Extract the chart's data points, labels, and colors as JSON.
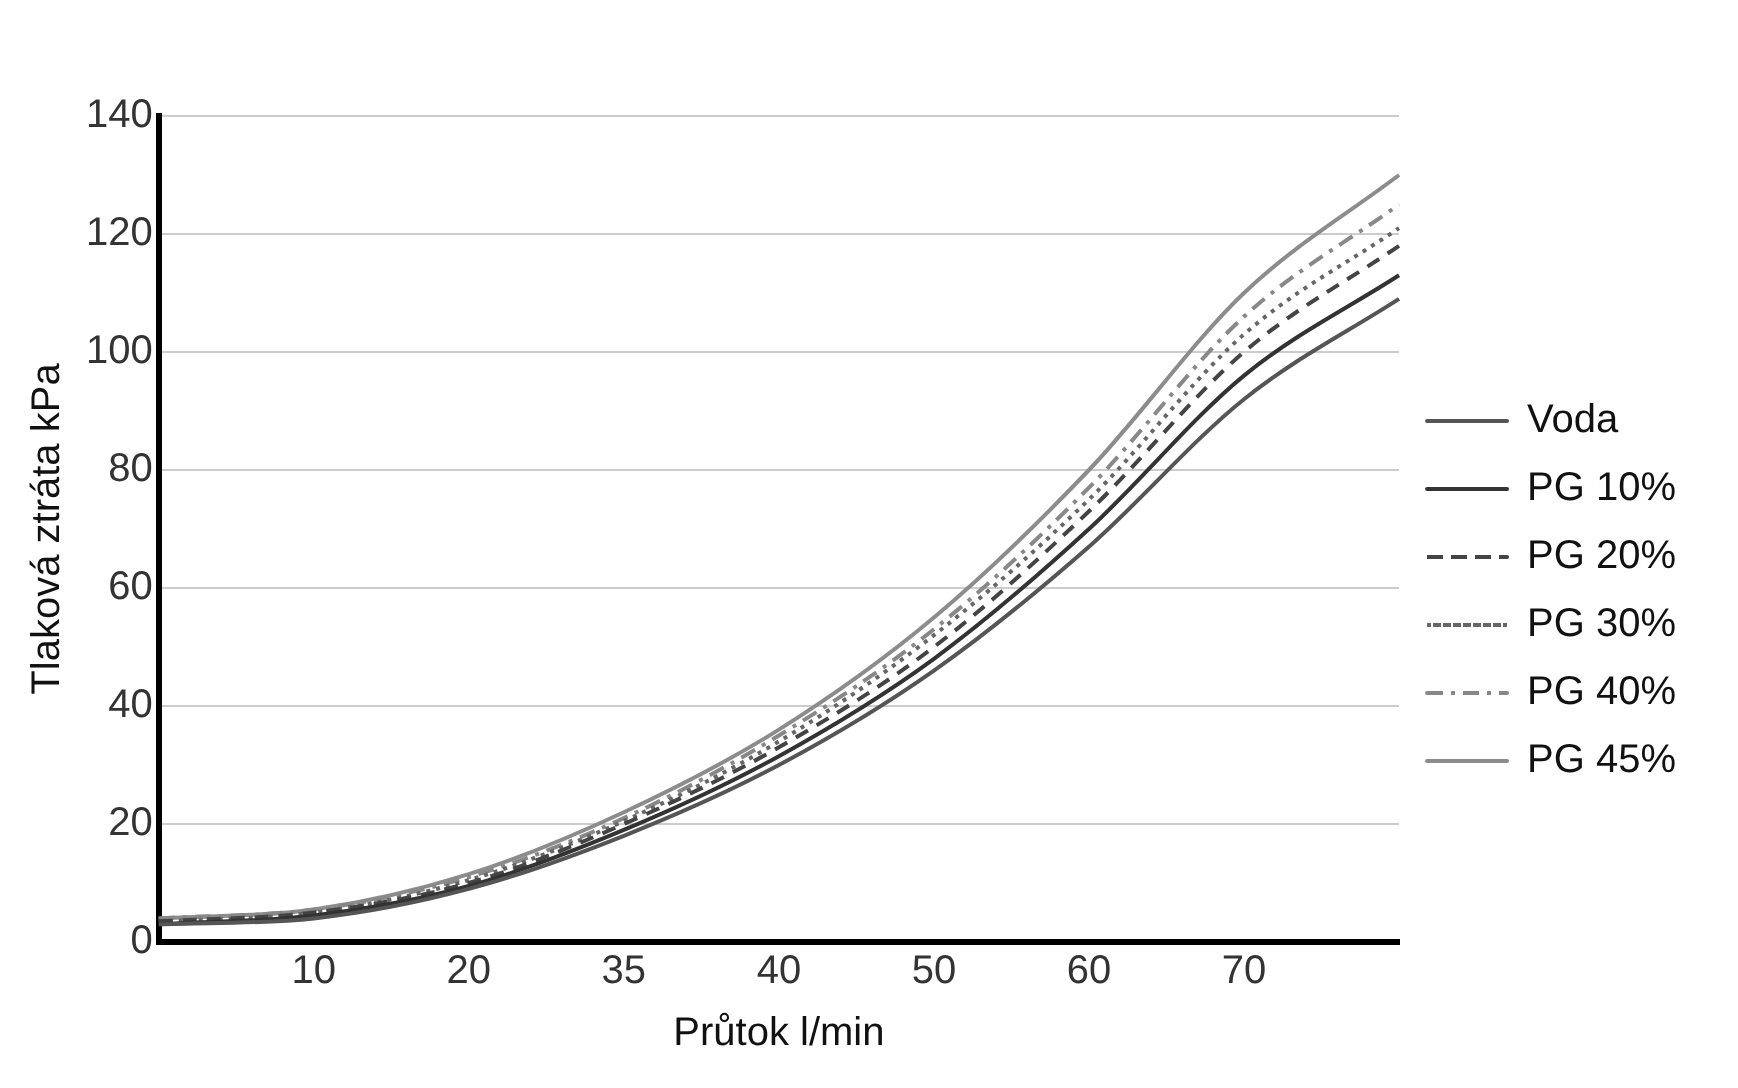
{
  "chart_data": {
    "type": "line",
    "xlabel": "Průtok l/min",
    "ylabel": "Tlaková ztráta kPa",
    "categories": [
      null,
      "10",
      "20",
      "35",
      "40",
      "50",
      "60",
      "70",
      null
    ],
    "ylim": [
      0,
      140
    ],
    "yticks": [
      0,
      20,
      40,
      60,
      80,
      100,
      120,
      140
    ],
    "grid": "y",
    "legend": "right",
    "marker": "none",
    "series": [
      {
        "name": "Voda",
        "color": "#555555",
        "line_style": "solid",
        "values": [
          3,
          4,
          9,
          18,
          30,
          46,
          67,
          92,
          109
        ]
      },
      {
        "name": "PG 10%",
        "color": "#333333",
        "line_style": "solid",
        "values": [
          3,
          4.5,
          9.5,
          19,
          31.5,
          48,
          70,
          96,
          113
        ]
      },
      {
        "name": "PG 20%",
        "color": "#444444",
        "line_style": "dashed",
        "values": [
          3.5,
          5,
          10,
          20,
          33,
          50,
          73,
          100,
          118
        ]
      },
      {
        "name": "PG 30%",
        "color": "#666666",
        "line_style": "dotted",
        "values": [
          3.5,
          5,
          10.5,
          20.5,
          34,
          52,
          75,
          103,
          121
        ]
      },
      {
        "name": "PG 40%",
        "color": "#888888",
        "line_style": "dashdot",
        "values": [
          4,
          5.5,
          11,
          21,
          35,
          53,
          77,
          106,
          125
        ]
      },
      {
        "name": "PG 45%",
        "color": "#8c8c8c",
        "line_style": "solid",
        "values": [
          4,
          5.5,
          11.5,
          22,
          36,
          55,
          80,
          110,
          130
        ]
      }
    ]
  }
}
